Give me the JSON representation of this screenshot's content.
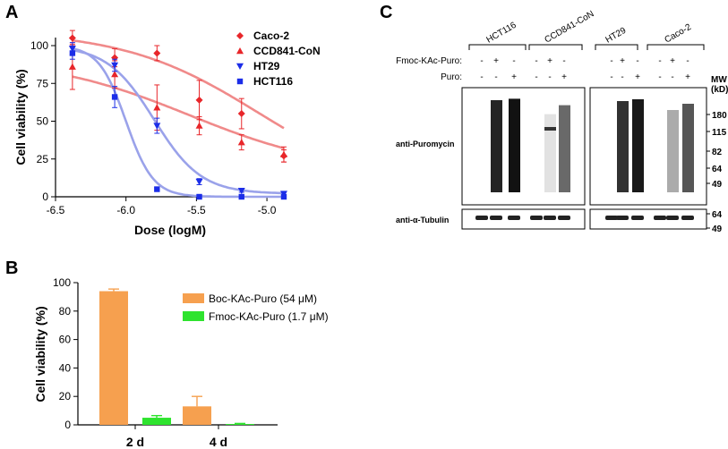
{
  "panels": {
    "a": "A",
    "b": "B",
    "c": "C"
  },
  "chart_data": [
    {
      "type": "scatter",
      "panel": "A",
      "xlabel": "Dose (logM)",
      "ylabel": "Cell viability (%)",
      "xlim": [
        -6.5,
        -4.85
      ],
      "ylim": [
        0,
        110
      ],
      "xticks": [
        -6.5,
        -6.0,
        -5.5,
        -5.0
      ],
      "xtick_labels": [
        "-6.5",
        "-6.0",
        "-5.5",
        "-5.0"
      ],
      "yticks": [
        0,
        25,
        50,
        75,
        100
      ],
      "legend_position": "top-right",
      "series": [
        {
          "name": "Caco-2",
          "color": "#e8262a",
          "marker": "diamond",
          "curve_color": "#f08a8a",
          "x": [
            -6.38,
            -6.08,
            -5.78,
            -5.48,
            -5.18,
            -4.88
          ],
          "y": [
            105,
            92,
            95,
            64,
            55,
            27
          ],
          "err": [
            5,
            6,
            5,
            13,
            10,
            4
          ],
          "fit": {
            "top": 110,
            "bottom": 0,
            "log_ic50": -5.05,
            "hill": -0.9
          }
        },
        {
          "name": "CCD841-CoN",
          "color": "#e8262a",
          "marker": "triangle-up",
          "curve_color": "#f08a8a",
          "x": [
            -6.38,
            -6.08,
            -5.78,
            -5.48,
            -5.18,
            -4.88
          ],
          "y": [
            86,
            81,
            59,
            47,
            36,
            28
          ],
          "err": [
            15,
            9,
            15,
            6,
            5,
            5
          ],
          "fit": {
            "top": 92,
            "bottom": 16,
            "log_ic50": -5.55,
            "hill": -0.85
          }
        },
        {
          "name": "HT29",
          "color": "#1b2de8",
          "marker": "triangle-down",
          "curve_color": "#9aa2ea",
          "x": [
            -6.38,
            -6.08,
            -5.78,
            -5.48,
            -5.18,
            -4.88
          ],
          "y": [
            98,
            87,
            47,
            10,
            4,
            2
          ],
          "err": [
            4,
            4,
            5,
            2,
            1,
            1
          ],
          "fit": {
            "top": 100,
            "bottom": 2,
            "log_ic50": -5.8,
            "hill": -2.6
          }
        },
        {
          "name": "HCT116",
          "color": "#1b2de8",
          "marker": "square",
          "curve_color": "#9aa2ea",
          "x": [
            -6.38,
            -6.08,
            -5.78,
            -5.48,
            -5.18,
            -4.88
          ],
          "y": [
            95,
            66,
            5,
            0,
            0,
            0
          ],
          "err": [
            4,
            7,
            1,
            0,
            0,
            0
          ],
          "fit": {
            "top": 100,
            "bottom": 0,
            "log_ic50": -6.0,
            "hill": -4.5
          }
        }
      ]
    },
    {
      "type": "bar",
      "panel": "B",
      "ylabel": "Cell viability (%)",
      "ylim": [
        0,
        100
      ],
      "yticks": [
        0,
        20,
        40,
        60,
        80,
        100
      ],
      "categories": [
        "2 d",
        "4 d"
      ],
      "legend_position": "top-right",
      "series": [
        {
          "name": "Boc-KAc-Puro (54 μM)",
          "color": "#f6a04f",
          "values": [
            94,
            13
          ],
          "err": [
            1.5,
            7
          ]
        },
        {
          "name": "Fmoc-KAc-Puro (1.7 μM)",
          "color": "#2ee32e",
          "values": [
            5,
            0.6
          ],
          "err": [
            1.5,
            0.4
          ]
        }
      ]
    }
  ],
  "blot": {
    "groups": [
      "HCT116",
      "CCD841-CoN",
      "HT29",
      "Caco-2"
    ],
    "row_labels": [
      "Fmoc-KAc-Puro:",
      "Puro:"
    ],
    "row_values": [
      [
        "-",
        "+",
        "-",
        "-",
        "+",
        "-",
        "-",
        "+",
        "-",
        "-",
        "+",
        "-"
      ],
      [
        "-",
        "-",
        "+",
        "-",
        "-",
        "+",
        "-",
        "-",
        "+",
        "-",
        "-",
        "+"
      ]
    ],
    "mw_header": [
      "MW",
      "(kD)"
    ],
    "mw_main": [
      "180",
      "115",
      "82",
      "64",
      "49"
    ],
    "mw_tubulin": [
      "64",
      "49"
    ],
    "label_main": "anti-Puromycin",
    "label_tubulin": "anti-α-Tubulin",
    "lane_intensity": [
      0.02,
      0.9,
      0.98,
      0.02,
      0.12,
      0.62,
      0.02,
      0.85,
      0.95,
      0.02,
      0.35,
      0.7
    ]
  }
}
